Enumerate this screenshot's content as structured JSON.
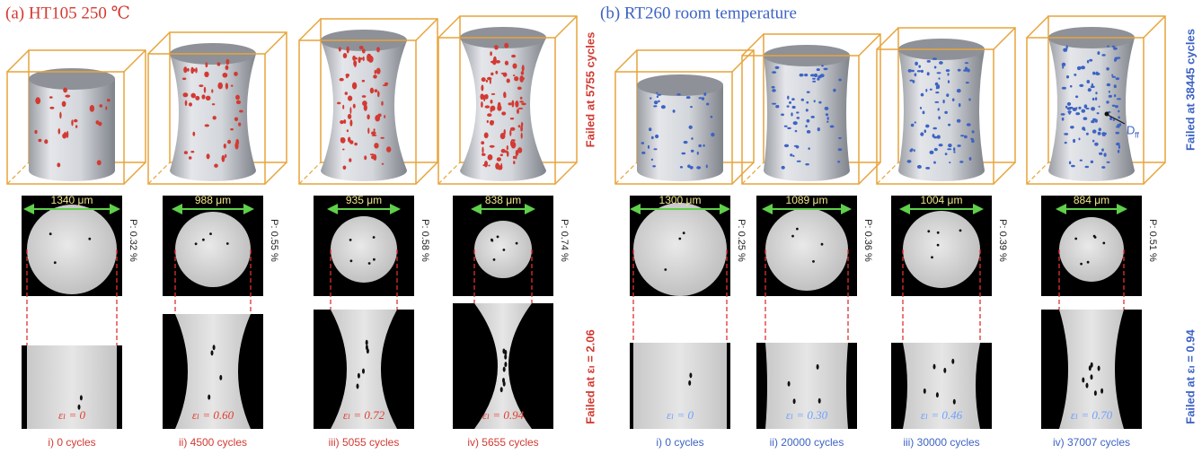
{
  "panels": [
    {
      "title": "(a) HT105  250 ℃",
      "failed_cycles": "Failed at 5755 cycles",
      "failed_strain": "Failed at εₗ = 2.06",
      "columns": [
        {
          "width": "1340 μm",
          "porosity": "P: 0.32 %",
          "strain": "εₗ = 0",
          "caption": "i) 0 cycles"
        },
        {
          "width": "988 μm",
          "porosity": "P: 0.55 %",
          "strain": "εₗ = 0.60",
          "caption": "ii) 4500 cycles"
        },
        {
          "width": "935 μm",
          "porosity": "P: 0.58 %",
          "strain": "εₗ = 0.72",
          "caption": "iii) 5055 cycles"
        },
        {
          "width": "838 μm",
          "porosity": "P: 0.74 %",
          "strain": "εₗ = 0.94",
          "caption": "iv) 5655 cycles"
        }
      ]
    },
    {
      "title": "(b) RT260 room temperature",
      "failed_cycles": "Failed at 38445 cycles",
      "failed_strain": "Failed at εₗ = 0.94",
      "columns": [
        {
          "width": "1300 μm",
          "porosity": "P: 0.25 %",
          "strain": "εₗ = 0",
          "caption": "i) 0 cycles"
        },
        {
          "width": "1089 μm",
          "porosity": "P: 0.36 %",
          "strain": "εₗ = 0.30",
          "caption": "ii) 20000 cycles"
        },
        {
          "width": "1004 μm",
          "porosity": "P: 0.39 %",
          "strain": "εₗ = 0.46",
          "caption": "iii) 30000 cycles"
        },
        {
          "width": "884 μm",
          "porosity": "P: 0.51 %",
          "strain": "εₗ = 0.70",
          "caption": "iv) 37007 cycles"
        }
      ]
    }
  ],
  "annotation": {
    "base": "D",
    "sub": "ff"
  }
}
